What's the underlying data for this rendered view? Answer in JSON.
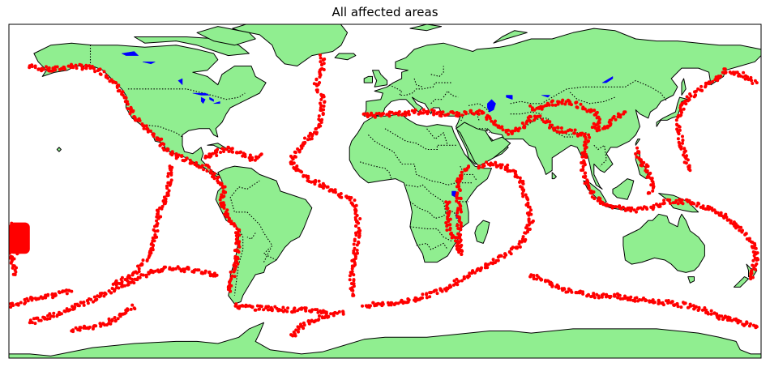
{
  "title": "All affected areas",
  "colors": {
    "land": "#90EE90",
    "ocean": "#FFFFFF",
    "lakes": "#0000FF",
    "points": "#FF0000",
    "coastline": "#000000"
  },
  "map": {
    "projection": "equirectangular",
    "lon_range": [
      -180,
      180
    ],
    "lat_range": [
      -80,
      80
    ],
    "features": [
      "coastlines",
      "country-borders",
      "lakes",
      "event-points"
    ]
  },
  "chart_data": {
    "type": "scatter",
    "title": "All affected areas",
    "xlim": [
      -180,
      180
    ],
    "ylim": [
      -80,
      80
    ],
    "series": [
      {
        "marker": "point",
        "color": "#FF0000",
        "segments": [
          [
            [
              -170,
              60
            ],
            [
              -160,
              58
            ],
            [
              -150,
              60
            ],
            [
              -140,
              59
            ],
            [
              -135,
              57
            ],
            [
              -130,
              53
            ],
            [
              -126,
              48
            ],
            [
              -124,
              42
            ],
            [
              -120,
              36
            ],
            [
              -116,
              32
            ],
            [
              -110,
              27
            ],
            [
              -105,
              20
            ],
            [
              -100,
              17
            ],
            [
              -95,
              15
            ],
            [
              -90,
              13
            ],
            [
              -85,
              11
            ],
            [
              -82,
              8
            ],
            [
              -78,
              4
            ],
            [
              -77,
              0
            ],
            [
              -78,
              -4
            ],
            [
              -77,
              -8
            ],
            [
              -76,
              -12
            ],
            [
              -72,
              -16
            ],
            [
              -70,
              -20
            ],
            [
              -70,
              -24
            ],
            [
              -71,
              -28
            ],
            [
              -71,
              -32
            ],
            [
              -72,
              -36
            ],
            [
              -73,
              -40
            ],
            [
              -74,
              -44
            ],
            [
              -74,
              -48
            ]
          ],
          [
            [
              -72,
              -55
            ],
            [
              -62,
              -56
            ],
            [
              -55,
              -56
            ],
            [
              -45,
              -57
            ],
            [
              -35,
              -57
            ],
            [
              -28,
              -58
            ]
          ],
          [
            [
              -60,
              18
            ],
            [
              -62,
              15
            ],
            [
              -66,
              17
            ],
            [
              -70,
              19
            ],
            [
              -75,
              20
            ],
            [
              -80,
              19
            ],
            [
              -86,
              16
            ]
          ],
          [
            [
              -30,
              65
            ],
            [
              -30,
              58
            ],
            [
              -33,
              52
            ],
            [
              -30,
              45
            ],
            [
              -30,
              38
            ],
            [
              -32,
              30
            ],
            [
              -40,
              22
            ],
            [
              -45,
              15
            ],
            [
              -40,
              8
            ],
            [
              -25,
              0
            ],
            [
              -15,
              -5
            ],
            [
              -13,
              -12
            ],
            [
              -13,
              -20
            ],
            [
              -14,
              -28
            ],
            [
              -15,
              -35
            ],
            [
              -16,
              -42
            ],
            [
              -15,
              -50
            ]
          ],
          [
            [
              -10,
              -55
            ],
            [
              0,
              -54
            ],
            [
              10,
              -53
            ],
            [
              20,
              -50
            ],
            [
              30,
              -46
            ],
            [
              40,
              -40
            ],
            [
              50,
              -35
            ],
            [
              58,
              -30
            ],
            [
              65,
              -25
            ],
            [
              70,
              -15
            ],
            [
              68,
              -5
            ],
            [
              65,
              5
            ],
            [
              58,
              12
            ],
            [
              50,
              13
            ],
            [
              45,
              12
            ]
          ],
          [
            [
              70,
              -40
            ],
            [
              80,
              -45
            ],
            [
              90,
              -48
            ],
            [
              100,
              -50
            ],
            [
              110,
              -50
            ],
            [
              120,
              -52
            ],
            [
              130,
              -53
            ],
            [
              140,
              -54
            ],
            [
              150,
              -56
            ],
            [
              160,
              -60
            ],
            [
              170,
              -63
            ],
            [
              178,
              -65
            ]
          ],
          [
            [
              -10,
              36
            ],
            [
              0,
              37
            ],
            [
              10,
              37
            ],
            [
              15,
              38
            ],
            [
              22,
              38
            ],
            [
              28,
              37
            ],
            [
              35,
              37
            ],
            [
              42,
              38
            ],
            [
              48,
              37
            ],
            [
              55,
              30
            ],
            [
              60,
              28
            ],
            [
              65,
              30
            ],
            [
              70,
              35
            ],
            [
              75,
              35
            ],
            [
              80,
              31
            ],
            [
              85,
              29
            ],
            [
              92,
              28
            ],
            [
              97,
              26
            ],
            [
              96,
              20
            ],
            [
              95,
              15
            ],
            [
              95,
              8
            ],
            [
              97,
              3
            ],
            [
              100,
              -2
            ],
            [
              105,
              -6
            ],
            [
              112,
              -8
            ],
            [
              120,
              -9
            ],
            [
              128,
              -8
            ],
            [
              135,
              -5
            ],
            [
              142,
              -5
            ],
            [
              148,
              -6
            ],
            [
              155,
              -8
            ],
            [
              162,
              -12
            ],
            [
              168,
              -16
            ],
            [
              172,
              -20
            ],
            [
              176,
              -25
            ],
            [
              178,
              -30
            ],
            [
              177,
              -36
            ],
            [
              175,
              -42
            ]
          ],
          [
            [
              120,
              20
            ],
            [
              122,
              15
            ],
            [
              126,
              10
            ],
            [
              127,
              6
            ],
            [
              128,
              2
            ],
            [
              126,
              -1
            ]
          ],
          [
            [
              140,
              35
            ],
            [
              142,
              38
            ],
            [
              143,
              42
            ],
            [
              146,
              45
            ],
            [
              150,
              48
            ],
            [
              155,
              52
            ],
            [
              160,
              55
            ],
            [
              163,
              58
            ],
            [
              170,
              56
            ],
            [
              178,
              52
            ]
          ],
          [
            [
              140,
              33
            ],
            [
              141,
              28
            ],
            [
              142,
              22
            ],
            [
              144,
              15
            ],
            [
              146,
              10
            ]
          ],
          [
            [
              -178,
              -15
            ],
            [
              -176,
              -20
            ],
            [
              -175,
              -25
            ],
            [
              -176,
              -30
            ]
          ],
          [
            [
              -130,
              -45
            ],
            [
              -120,
              -40
            ],
            [
              -112,
              -30
            ],
            [
              -110,
              -20
            ],
            [
              -108,
              -10
            ],
            [
              -105,
              -3
            ],
            [
              -103,
              5
            ],
            [
              -103,
              12
            ]
          ],
          [
            [
              -80,
              -40
            ],
            [
              -90,
              -38
            ],
            [
              -100,
              -37
            ],
            [
              -110,
              -38
            ],
            [
              -118,
              -42
            ],
            [
              -125,
              -45
            ],
            [
              -140,
              -52
            ],
            [
              -150,
              -56
            ],
            [
              -160,
              -60
            ],
            [
              -170,
              -63
            ]
          ],
          [
            [
              30,
              -5
            ],
            [
              31,
              -10
            ],
            [
              30,
              -15
            ],
            [
              31,
              -20
            ],
            [
              35,
              -25
            ],
            [
              36,
              -30
            ],
            [
              35,
              5
            ],
            [
              38,
              10
            ],
            [
              40,
              12
            ]
          ],
          [
            [
              70,
              40
            ],
            [
              75,
              40
            ],
            [
              80,
              42
            ],
            [
              85,
              43
            ],
            [
              90,
              42
            ],
            [
              95,
              40
            ],
            [
              100,
              38
            ],
            [
              103,
              35
            ],
            [
              100,
              30
            ],
            [
              105,
              30
            ],
            [
              110,
              35
            ],
            [
              115,
              38
            ]
          ],
          [
            [
              -178,
              -20
            ],
            [
              -179,
              -25
            ],
            [
              -179,
              -30
            ],
            [
              -178,
              -35
            ],
            [
              -177,
              -40
            ]
          ],
          [
            [
              -120,
              -55
            ],
            [
              -125,
              -58
            ],
            [
              -130,
              -62
            ],
            [
              -140,
              -65
            ],
            [
              -150,
              -67
            ]
          ],
          [
            [
              -45,
              -70
            ],
            [
              -40,
              -65
            ],
            [
              -30,
              -60
            ],
            [
              -20,
              -58
            ]
          ],
          [
            [
              -180,
              -55
            ],
            [
              -170,
              -52
            ],
            [
              -160,
              -50
            ],
            [
              -150,
              -48
            ]
          ]
        ]
      }
    ]
  }
}
